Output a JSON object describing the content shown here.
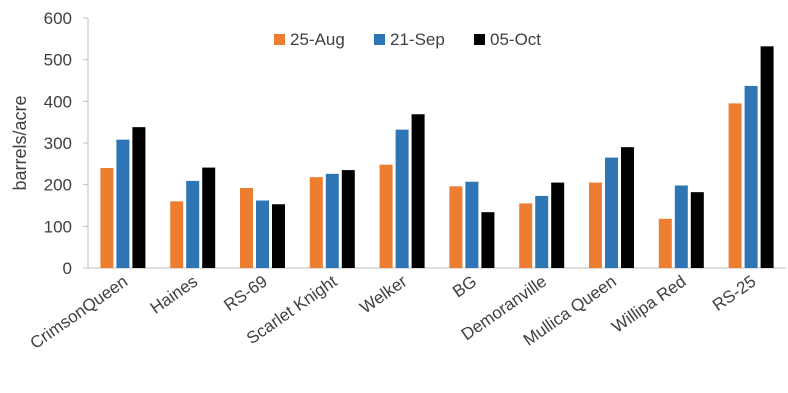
{
  "chart_data": {
    "type": "bar",
    "title": "",
    "xlabel": "",
    "ylabel": "barrels/acre",
    "ylim": [
      0,
      600
    ],
    "yticks": [
      0,
      100,
      200,
      300,
      400,
      500,
      600
    ],
    "grid": false,
    "legend_position": "top-center",
    "categories": [
      "CrimsonQueen",
      "Haines",
      "RS-69",
      "Scarlet Knight",
      "Welker",
      "BG",
      "Demoranville",
      "Mullica Queen",
      "Willipa Red",
      "RS-25"
    ],
    "series": [
      {
        "name": "25-Aug",
        "color": "#ED7D31",
        "values": [
          240,
          160,
          192,
          218,
          248,
          196,
          155,
          205,
          118,
          395
        ]
      },
      {
        "name": "21-Sep",
        "color": "#2E75B6",
        "values": [
          308,
          209,
          162,
          226,
          332,
          207,
          173,
          265,
          198,
          437
        ]
      },
      {
        "name": "05-Oct",
        "color": "#000000",
        "values": [
          338,
          241,
          153,
          235,
          369,
          134,
          205,
          290,
          182,
          532
        ]
      }
    ]
  }
}
